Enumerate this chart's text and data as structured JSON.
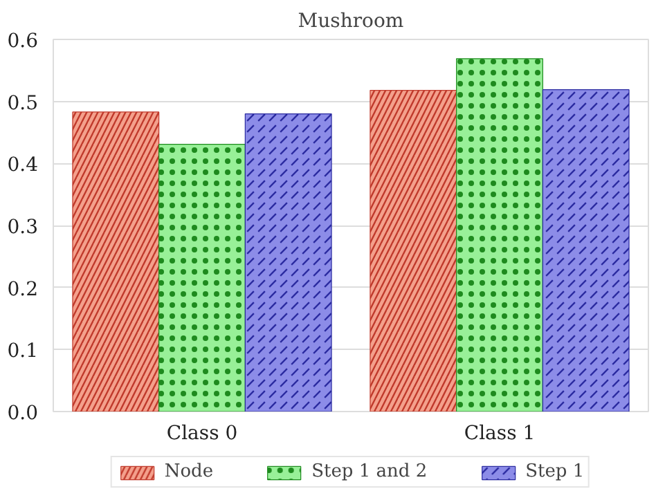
{
  "chart_data": {
    "type": "bar",
    "title": "Mushroom",
    "categories": [
      "Class 0",
      "Class 1"
    ],
    "series": [
      {
        "name": "Node",
        "color": "#f4a08c",
        "values": [
          0.483,
          0.518
        ]
      },
      {
        "name": "Step 1 and 2",
        "color": "#98f098",
        "values": [
          0.431,
          0.569
        ]
      },
      {
        "name": "Step 1",
        "color": "#8c8ce8",
        "values": [
          0.48,
          0.519
        ]
      }
    ],
    "ylim": [
      0,
      0.6
    ],
    "yticks": [
      {
        "value": 0,
        "label": "0.0"
      },
      {
        "value": 0.1,
        "label": "0.1"
      },
      {
        "value": 0.2,
        "label": "0.2"
      },
      {
        "value": 0.3,
        "label": "0.3"
      },
      {
        "value": 0.4,
        "label": "0.4"
      },
      {
        "value": 0.5,
        "label": "0.5"
      },
      {
        "value": 0.6,
        "label": "0.6"
      }
    ],
    "grid": "y",
    "legend": "bottom"
  }
}
